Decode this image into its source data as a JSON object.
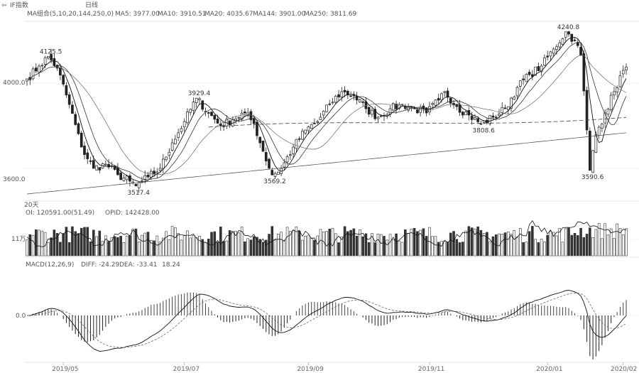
{
  "header": {
    "symbol": "IF指数",
    "timeframe": "日线",
    "ma_group": "MA组合(5,10,20,144,250,0)",
    "ma_values": [
      {
        "label": "MA5: 3977.00",
        "color": "#333333"
      },
      {
        "label": "MA10: 3910.51",
        "color": "#333333"
      },
      {
        "label": "MA20: 4035.67",
        "color": "#555555"
      },
      {
        "label": "MA144: 3901.00",
        "color": "#555555"
      },
      {
        "label": "MA250: 3811.69",
        "color": "#555555"
      }
    ]
  },
  "price_panel": {
    "y_labels": [
      {
        "value": 4000.0,
        "text": "4000.0"
      },
      {
        "value": 3600.0,
        "text": "3600.0"
      }
    ],
    "annotations": [
      {
        "text": "4125.5",
        "i": 7,
        "value": 4125.5,
        "pos": "top"
      },
      {
        "text": "3517.4",
        "i": 36,
        "value": 3517.4,
        "pos": "bottom"
      },
      {
        "text": "3929.4",
        "i": 56,
        "value": 3929.4,
        "pos": "top"
      },
      {
        "text": "3569.2",
        "i": 81,
        "value": 3569.2,
        "pos": "bottom"
      },
      {
        "text": "3808.6",
        "i": 150,
        "value": 3808.6,
        "pos": "bottom"
      },
      {
        "text": "4240.8",
        "i": 178,
        "value": 4240.8,
        "pos": "top"
      },
      {
        "text": "3590.6",
        "i": 186,
        "value": 3590.6,
        "pos": "bottom"
      }
    ]
  },
  "volume_panel": {
    "title": "20天",
    "legend": "OI: 120591.00(51.49)",
    "legend2": "OPID: 142428.00",
    "y_label": "11万"
  },
  "macd_panel": {
    "legend": "MACD(12,26,9)",
    "diff": "DIFF: -24.29",
    "dea": "DEA: -33.41",
    "macd": "18.24",
    "zero_label": "0.0"
  },
  "x_axis": {
    "labels": [
      {
        "text": "2019/05",
        "i": 12
      },
      {
        "text": "2019/07",
        "i": 52
      },
      {
        "text": "2019/09",
        "i": 93
      },
      {
        "text": "2019/11",
        "i": 133
      },
      {
        "text": "2020/01",
        "i": 172
      },
      {
        "text": "2020/02",
        "i": 197
      }
    ]
  },
  "chart_data": {
    "type": "candlestick",
    "title": "",
    "keypoints": [
      [
        0,
        4020
      ],
      [
        4,
        4080
      ],
      [
        7,
        4125.5
      ],
      [
        10,
        4070
      ],
      [
        14,
        3900
      ],
      [
        18,
        3700
      ],
      [
        22,
        3600
      ],
      [
        26,
        3620
      ],
      [
        30,
        3570
      ],
      [
        34,
        3540
      ],
      [
        36,
        3517.4
      ],
      [
        40,
        3560
      ],
      [
        44,
        3600
      ],
      [
        48,
        3720
      ],
      [
        52,
        3820
      ],
      [
        56,
        3929.4
      ],
      [
        60,
        3860
      ],
      [
        64,
        3800
      ],
      [
        68,
        3830
      ],
      [
        72,
        3860
      ],
      [
        75,
        3810
      ],
      [
        78,
        3680
      ],
      [
        81,
        3569.2
      ],
      [
        84,
        3600
      ],
      [
        88,
        3700
      ],
      [
        92,
        3780
      ],
      [
        96,
        3820
      ],
      [
        100,
        3900
      ],
      [
        104,
        3960
      ],
      [
        108,
        3940
      ],
      [
        112,
        3880
      ],
      [
        116,
        3840
      ],
      [
        120,
        3880
      ],
      [
        124,
        3900
      ],
      [
        128,
        3880
      ],
      [
        132,
        3860
      ],
      [
        136,
        3920
      ],
      [
        138,
        3960
      ],
      [
        142,
        3890
      ],
      [
        146,
        3850
      ],
      [
        150,
        3808.6
      ],
      [
        154,
        3840
      ],
      [
        158,
        3880
      ],
      [
        162,
        3980
      ],
      [
        166,
        4040
      ],
      [
        170,
        4080
      ],
      [
        174,
        4160
      ],
      [
        178,
        4240.8
      ],
      [
        181,
        4200
      ],
      [
        183,
        4130
      ],
      [
        185,
        3780
      ],
      [
        186,
        3590.6
      ],
      [
        188,
        3760
      ],
      [
        191,
        3860
      ],
      [
        194,
        3960
      ],
      [
        197,
        4060
      ]
    ],
    "count": 199,
    "y_range": [
      3450,
      4290
    ],
    "volume_baseline": 110000,
    "moving_averages": [
      5,
      10,
      20,
      144,
      250
    ],
    "macd_params": [
      12,
      26,
      9
    ]
  }
}
